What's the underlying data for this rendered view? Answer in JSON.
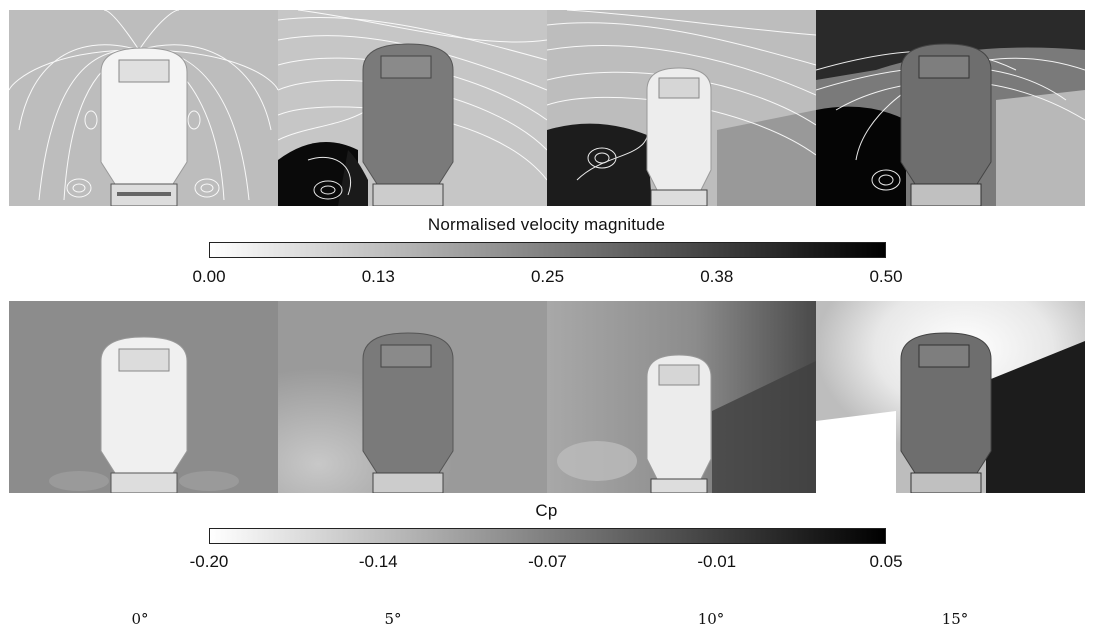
{
  "velocity_colorbar": {
    "title": "Normalised velocity magnitude",
    "ticks": [
      "0.00",
      "0.13",
      "0.25",
      "0.38",
      "0.50"
    ]
  },
  "cp_colorbar": {
    "title": "Cp",
    "ticks": [
      "-0.20",
      "-0.14",
      "-0.07",
      "-0.01",
      "0.05"
    ]
  },
  "angles": [
    "0°",
    "5°",
    "10°",
    "15°"
  ],
  "colors": {
    "colormap_low": "#ffffff",
    "colormap_high": "#000000",
    "streamline": "#ffffff"
  }
}
